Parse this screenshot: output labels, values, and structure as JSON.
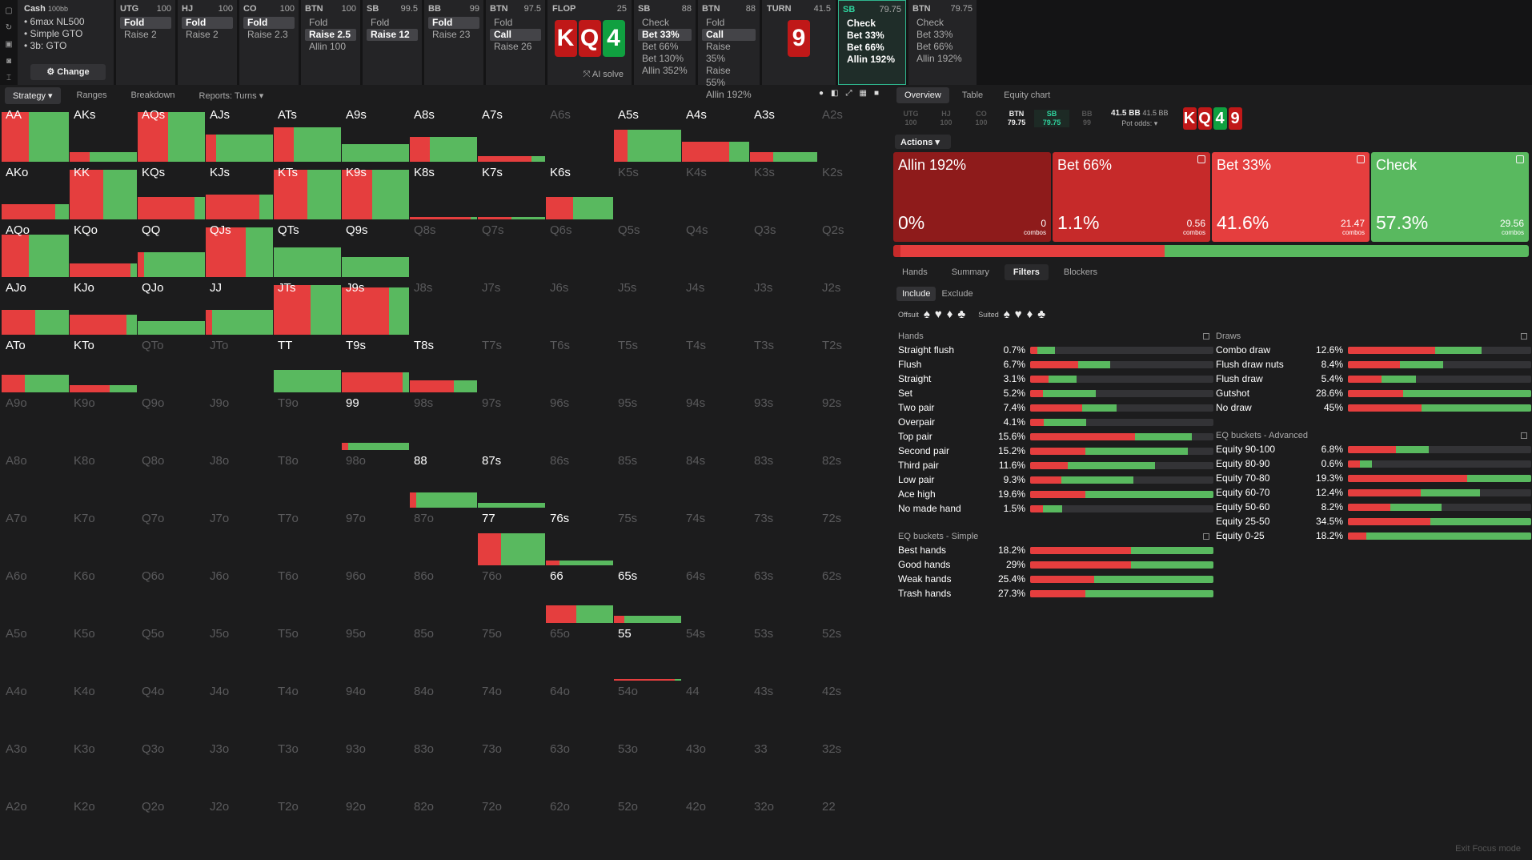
{
  "colors": {
    "red": "#e53e3e",
    "darkred": "#8e1b1b",
    "green": "#59b95f",
    "accent": "#2fd39e"
  },
  "icons": [
    "file-icon",
    "refresh-icon",
    "save-icon",
    "gamepad-icon",
    "cursor-icon"
  ],
  "game": {
    "title": "Cash",
    "stack": "100bb",
    "lines": [
      "6max NL500",
      "Simple GTO",
      "3b: GTO"
    ],
    "change": "Change"
  },
  "players": [
    {
      "pos": "UTG",
      "stack": "100",
      "opts": [
        "Fold",
        "Raise 2"
      ],
      "active": 0
    },
    {
      "pos": "HJ",
      "stack": "100",
      "opts": [
        "Fold",
        "Raise 2"
      ],
      "active": 0
    },
    {
      "pos": "CO",
      "stack": "100",
      "opts": [
        "Fold",
        "Raise 2.3"
      ],
      "active": 0
    },
    {
      "pos": "BTN",
      "stack": "100",
      "opts": [
        "Fold",
        "Raise 2.5",
        "Allin 100"
      ],
      "active": 1
    },
    {
      "pos": "SB",
      "stack": "99.5",
      "opts": [
        "Fold",
        "Raise 12"
      ],
      "active": 1
    },
    {
      "pos": "BB",
      "stack": "99",
      "opts": [
        "Fold",
        "Raise 23"
      ],
      "active": 0
    },
    {
      "pos": "BTN",
      "stack": "97.5",
      "opts": [
        "Fold",
        "Call",
        "Raise 26"
      ],
      "active": 1
    }
  ],
  "flop": {
    "label": "FLOP",
    "pot": "25",
    "cards": [
      "K",
      "Q",
      "4"
    ],
    "ai": "AI solve"
  },
  "players2": [
    {
      "pos": "SB",
      "stack": "88",
      "opts": [
        "Check",
        "Bet 33%",
        "Bet 66%",
        "Bet 130%",
        "Allin 352%"
      ],
      "active": 1
    },
    {
      "pos": "BTN",
      "stack": "88",
      "opts": [
        "Fold",
        "Call",
        "Raise 35%",
        "Raise 55%",
        "Allin 192%"
      ],
      "active": 1
    }
  ],
  "turn": {
    "label": "TURN",
    "pot": "41.5",
    "card": "9"
  },
  "players3": [
    {
      "pos": "SB",
      "stack": "79.75",
      "opts": [
        "Check",
        "Bet 33%",
        "Bet 66%",
        "Allin 192%"
      ],
      "selected": true
    },
    {
      "pos": "BTN",
      "stack": "79.75",
      "opts": [
        "Check",
        "Bet 33%",
        "Bet 66%",
        "Allin 192%"
      ],
      "selected": false
    }
  ],
  "lefttabs": [
    "Strategy",
    "Ranges",
    "Breakdown",
    "Reports: Turns"
  ],
  "righttabs": [
    "Overview",
    "Table",
    "Equity chart"
  ],
  "positions": [
    {
      "n": "UTG",
      "s": "100"
    },
    {
      "n": "HJ",
      "s": "100"
    },
    {
      "n": "CO",
      "s": "100"
    },
    {
      "n": "BTN",
      "s": "79.75"
    },
    {
      "n": "SB",
      "s": "79.75"
    },
    {
      "n": "BB",
      "s": "99"
    }
  ],
  "pot": {
    "a": "41.5 BB",
    "b": "41.5 BB",
    "odds": "Pot odds:"
  },
  "board": [
    "K",
    "Q",
    "4",
    "9"
  ],
  "actions_btn": "Actions",
  "actions": [
    {
      "name": "Allin 192%",
      "pct": "0%",
      "combos": "0",
      "share": 0,
      "color": "#8e1b1b"
    },
    {
      "name": "Bet 66%",
      "pct": "1.1%",
      "combos": "0.56",
      "share": 1.1,
      "color": "#c62a2a"
    },
    {
      "name": "Bet 33%",
      "pct": "41.6%",
      "combos": "21.47",
      "share": 41.6,
      "color": "#e53e3e"
    },
    {
      "name": "Check",
      "pct": "57.3%",
      "combos": "29.56",
      "share": 57.3,
      "color": "#59b95f"
    }
  ],
  "combos_label": "combos",
  "subtabs": [
    "Hands",
    "Summary",
    "Filters",
    "Blockers"
  ],
  "include": "Include",
  "exclude": "Exclude",
  "offsuit": "Offsuit",
  "suited": "Suited",
  "hands_title": "Hands",
  "hands": [
    {
      "n": "Straight flush",
      "p": "0.7%",
      "r": 0.3,
      "g": 0.7
    },
    {
      "n": "Flush",
      "p": "6.7%",
      "r": 0.6,
      "g": 0.4
    },
    {
      "n": "Straight",
      "p": "3.1%",
      "r": 0.4,
      "g": 0.6
    },
    {
      "n": "Set",
      "p": "5.2%",
      "r": 0.2,
      "g": 0.8
    },
    {
      "n": "Two pair",
      "p": "7.4%",
      "r": 0.6,
      "g": 0.4
    },
    {
      "n": "Overpair",
      "p": "4.1%",
      "r": 0.25,
      "g": 0.75
    },
    {
      "n": "Top pair",
      "p": "15.6%",
      "r": 0.65,
      "g": 0.35
    },
    {
      "n": "Second pair",
      "p": "15.2%",
      "r": 0.35,
      "g": 0.65
    },
    {
      "n": "Third pair",
      "p": "11.6%",
      "r": 0.3,
      "g": 0.7
    },
    {
      "n": "Low pair",
      "p": "9.3%",
      "r": 0.3,
      "g": 0.7
    },
    {
      "n": "Ace high",
      "p": "19.6%",
      "r": 0.3,
      "g": 0.7
    },
    {
      "n": "No made hand",
      "p": "1.5%",
      "r": 0.4,
      "g": 0.6
    }
  ],
  "simple_title": "EQ buckets - Simple",
  "simple": [
    {
      "n": "Best hands",
      "p": "18.2%",
      "r": 0.55,
      "g": 0.45
    },
    {
      "n": "Good hands",
      "p": "29%",
      "r": 0.55,
      "g": 0.45
    },
    {
      "n": "Weak hands",
      "p": "25.4%",
      "r": 0.35,
      "g": 0.65
    },
    {
      "n": "Trash hands",
      "p": "27.3%",
      "r": 0.3,
      "g": 0.7
    }
  ],
  "draws_title": "Draws",
  "draws": [
    {
      "n": "Combo draw",
      "p": "12.6%",
      "r": 0.65,
      "g": 0.35
    },
    {
      "n": "Flush draw nuts",
      "p": "8.4%",
      "r": 0.55,
      "g": 0.45
    },
    {
      "n": "Flush draw",
      "p": "5.4%",
      "r": 0.5,
      "g": 0.5
    },
    {
      "n": "Gutshot",
      "p": "28.6%",
      "r": 0.3,
      "g": 0.7
    },
    {
      "n": "No draw",
      "p": "45%",
      "r": 0.4,
      "g": 0.6
    }
  ],
  "adv_title": "EQ buckets - Advanced",
  "adv": [
    {
      "n": "Equity 90-100",
      "p": "6.8%",
      "r": 0.6,
      "g": 0.4
    },
    {
      "n": "Equity 80-90",
      "p": "0.6%",
      "r": 0.5,
      "g": 0.5
    },
    {
      "n": "Equity 70-80",
      "p": "19.3%",
      "r": 0.65,
      "g": 0.35
    },
    {
      "n": "Equity 60-70",
      "p": "12.4%",
      "r": 0.55,
      "g": 0.45
    },
    {
      "n": "Equity 50-60",
      "p": "8.2%",
      "r": 0.45,
      "g": 0.55
    },
    {
      "n": "Equity 25-50",
      "p": "34.5%",
      "r": 0.45,
      "g": 0.55
    },
    {
      "n": "Equity 0-25",
      "p": "18.2%",
      "r": 0.1,
      "g": 0.9
    }
  ],
  "exit": "Exit Focus mode",
  "grid": {
    "ranks": [
      "A",
      "K",
      "Q",
      "J",
      "T",
      "9",
      "8",
      "7",
      "6",
      "5",
      "4",
      "3",
      "2"
    ],
    "cells": {
      "AA": [
        1,
        0.4,
        0.6
      ],
      "AKs": [
        0.2,
        0.3,
        0.7
      ],
      "AQs": [
        1,
        0.45,
        0.55
      ],
      "AJs": [
        0.55,
        0.15,
        0.85
      ],
      "ATs": [
        0.7,
        0.3,
        0.7
      ],
      "A9s": [
        0.35,
        0.0,
        1
      ],
      "A8s": [
        0.5,
        0.3,
        0.7
      ],
      "A7s": [
        0.12,
        0.8,
        0.2
      ],
      "A5s": [
        0.65,
        0.2,
        0.8
      ],
      "A4s": [
        0.4,
        0.7,
        0.3
      ],
      "A3s": [
        0.2,
        0.35,
        0.65
      ],
      "AKo": [
        0.3,
        0.8,
        0.2
      ],
      "KK": [
        1,
        0.5,
        0.5
      ],
      "KQs": [
        0.45,
        0.85,
        0.15
      ],
      "KJs": [
        0.5,
        0.8,
        0.2
      ],
      "KTs": [
        1,
        0.5,
        0.5
      ],
      "K9s": [
        1,
        0.45,
        0.55
      ],
      "K8s": [
        0.05,
        0.9,
        0.1
      ],
      "K7s": [
        0.05,
        0.5,
        0.5
      ],
      "K6s": [
        0.45,
        0.4,
        0.6
      ],
      "AQo": [
        0.85,
        0.4,
        0.6
      ],
      "KQo": [
        0.28,
        0.9,
        0.1
      ],
      "QQ": [
        0.5,
        0.1,
        0.9
      ],
      "QJs": [
        1,
        0.6,
        0.4
      ],
      "QTs": [
        0.6,
        0.0,
        1
      ],
      "Q9s": [
        0.4,
        0.0,
        1
      ],
      "AJo": [
        0.5,
        0.5,
        0.5
      ],
      "KJo": [
        0.4,
        0.85,
        0.15
      ],
      "QJo": [
        0.28,
        0.0,
        1
      ],
      "JJ": [
        0.5,
        0.1,
        0.9
      ],
      "JTs": [
        1,
        0.55,
        0.45
      ],
      "J9s": [
        0.95,
        0.7,
        0.3
      ],
      "ATo": [
        0.35,
        0.35,
        0.65
      ],
      "KTo": [
        0.15,
        0.6,
        0.4
      ],
      "TT": [
        0.45,
        0.0,
        1
      ],
      "T9s": [
        0.4,
        0.9,
        0.1
      ],
      "T8s": [
        0.25,
        0.65,
        0.35
      ],
      "99": [
        0.15,
        0.1,
        0.9
      ],
      "88": [
        0.3,
        0.1,
        0.9
      ],
      "87s": [
        0.1,
        0.0,
        1
      ],
      "77": [
        0.65,
        0.35,
        0.65
      ],
      "76s": [
        0.1,
        0.2,
        0.8
      ],
      "66": [
        0.35,
        0.45,
        0.55
      ],
      "65s": [
        0.15,
        0.15,
        0.85
      ],
      "55": [
        0.03,
        0.9,
        0.1
      ]
    }
  }
}
